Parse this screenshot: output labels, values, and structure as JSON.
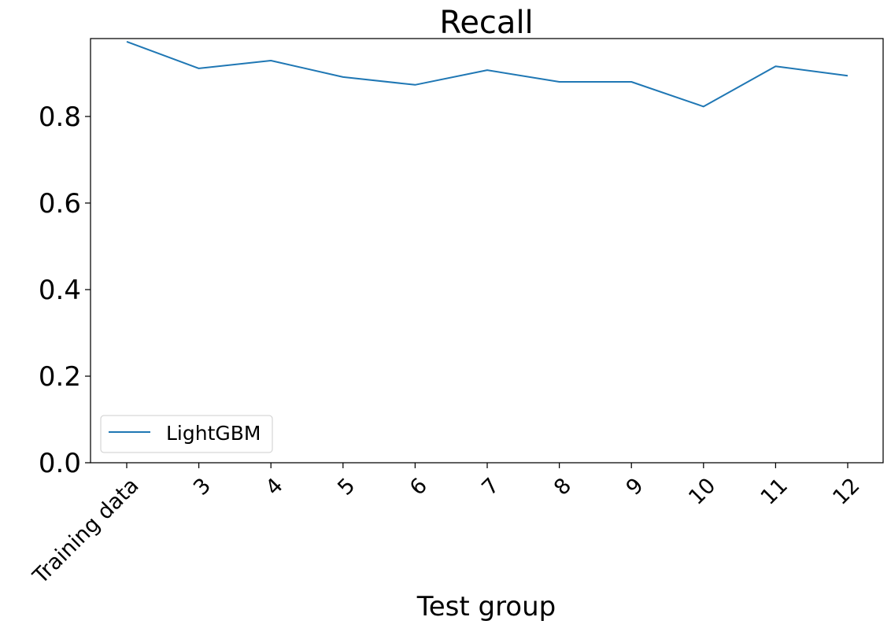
{
  "chart_data": {
    "type": "line",
    "title": "Recall",
    "xlabel": "Test group",
    "ylabel": "",
    "categories": [
      "Training data",
      "3",
      "4",
      "5",
      "6",
      "7",
      "8",
      "9",
      "10",
      "11",
      "12"
    ],
    "series": [
      {
        "name": "LightGBM",
        "color": "#1f77b4",
        "values": [
          0.973,
          0.911,
          0.929,
          0.891,
          0.873,
          0.907,
          0.88,
          0.88,
          0.823,
          0.916,
          0.894
        ]
      }
    ],
    "yticks": [
      "0.0",
      "0.2",
      "0.4",
      "0.6",
      "0.8"
    ],
    "ylim": [
      0,
      0.98
    ],
    "grid": false,
    "legend_position": "lower-left"
  }
}
